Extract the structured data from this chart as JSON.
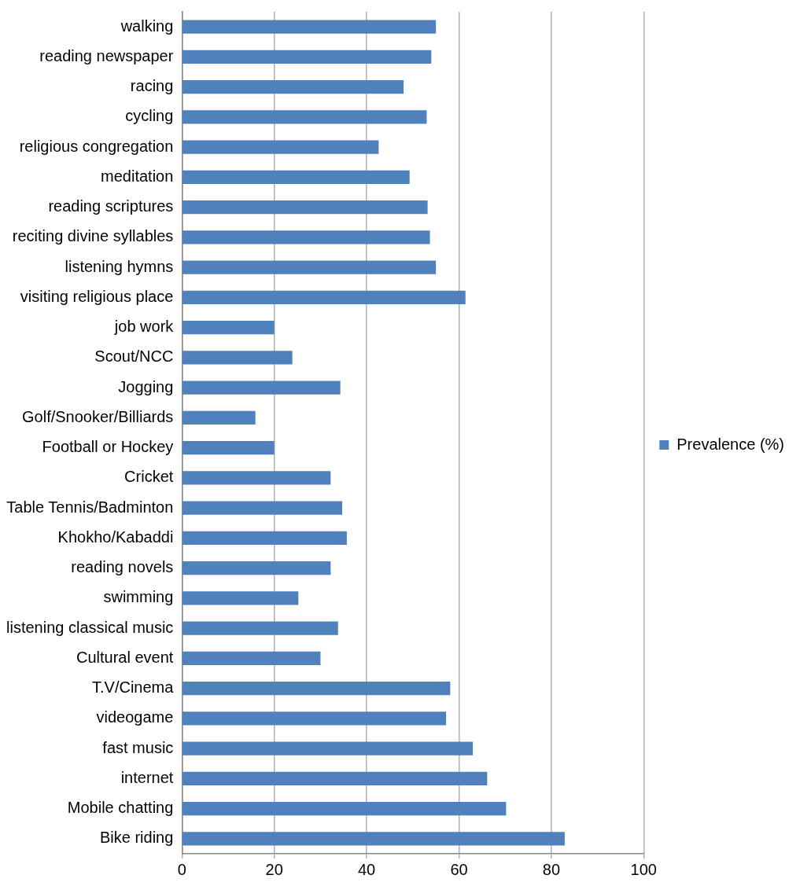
{
  "chart_data": {
    "type": "bar",
    "orientation": "horizontal",
    "categories": [
      "walking",
      "reading newspaper",
      "racing",
      "cycling",
      "religious congregation",
      "meditation",
      "reading scriptures",
      "reciting divine syllables",
      "listening hymns",
      "visiting religious place",
      "job work",
      "Scout/NCC",
      "Jogging",
      "Golf/Snooker/Billiards",
      "Football or Hockey",
      "Cricket",
      "Table Tennis/Badminton",
      "Khokho/Kabaddi",
      "reading novels",
      "swimming",
      "listening classical music",
      "Cultural event",
      "T.V/Cinema",
      "videogame",
      "fast music",
      "internet",
      "Mobile chatting",
      "Bike riding"
    ],
    "series": [
      {
        "name": "Prevalence (%)",
        "color": "#4f81bd",
        "values": [
          55,
          54,
          48,
          53,
          42.6,
          49.3,
          53.2,
          53.7,
          55,
          61.4,
          20,
          23.9,
          34.3,
          15.9,
          20,
          32.2,
          34.7,
          35.7,
          32.2,
          25.2,
          33.8,
          30,
          58.1,
          57.2,
          63,
          66.1,
          70.2,
          82.9
        ]
      }
    ],
    "xlim": [
      0,
      100
    ],
    "xticks": [
      0,
      20,
      40,
      60,
      80,
      100
    ],
    "grid": "x",
    "legend": "right"
  }
}
